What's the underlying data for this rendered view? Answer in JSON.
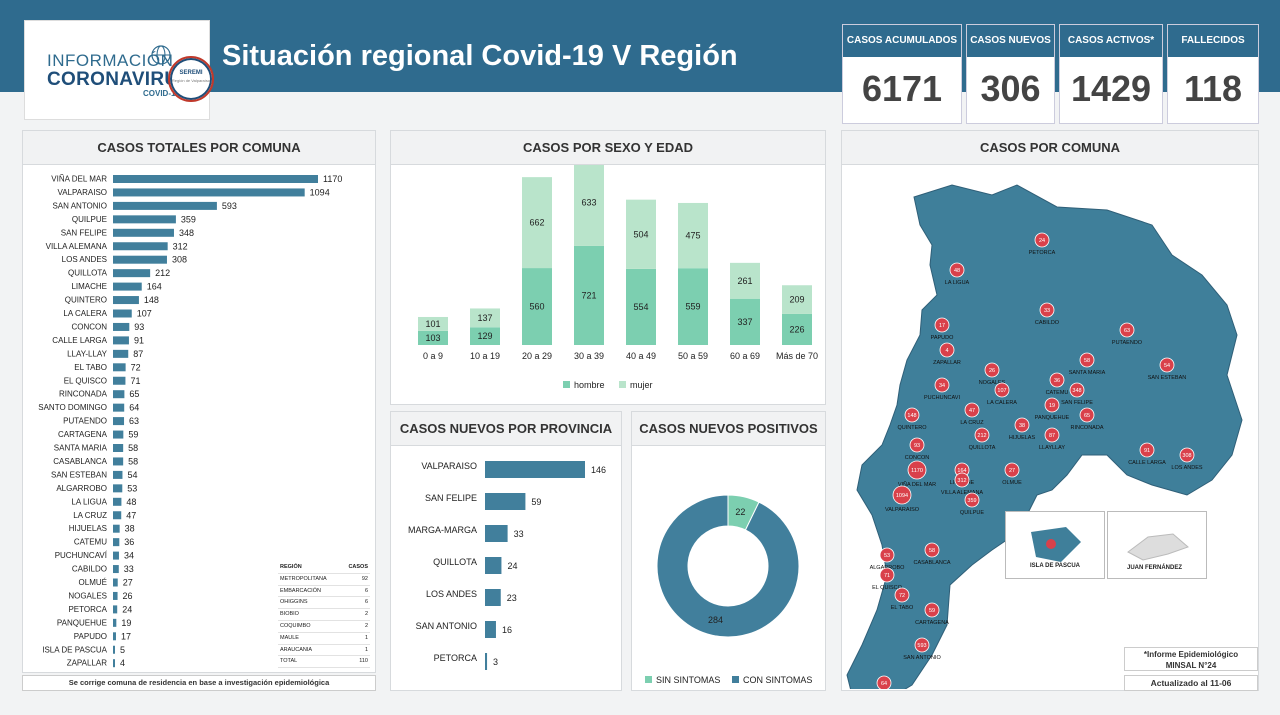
{
  "header": {
    "logo_line1": "INFORMACIÓN",
    "logo_line2": "CORONAVIRUS",
    "logo_line3": "COVID-19",
    "seremi": "SEREMI",
    "seremi_sub": "Región de Valparaíso",
    "title": "Situación regional Covid-19 V Región"
  },
  "kpis": [
    {
      "label": "CASOS ACUMULADOS",
      "value": "6171"
    },
    {
      "label": "CASOS NUEVOS",
      "value": "306"
    },
    {
      "label": "CASOS ACTIVOS*",
      "value": "1429"
    },
    {
      "label": "FALLECIDOS",
      "value": "118"
    }
  ],
  "colors": {
    "accent": "#2f6b8e",
    "bar": "#417f9c",
    "hombre": "#7ccfb0",
    "mujer": "#b9e4cb",
    "marker": "#d9414b"
  },
  "panels": {
    "comuna_title": "CASOS TOTALES POR COMUNA",
    "sexo_title": "CASOS POR SEXO Y EDAD",
    "provincia_title": "CASOS NUEVOS  POR PROVINCIA",
    "positivos_title": "CASOS NUEVOS POSITIVOS",
    "map_title": "CASOS POR COMUNA"
  },
  "footer_note": "Se corrige comuna de residencia en base a investigación epidemiológica",
  "region_table": {
    "headers": [
      "REGIÓN",
      "CASOS"
    ],
    "rows": [
      [
        "METROPOLITANA",
        "92"
      ],
      [
        "EMBARCACIÓN",
        "6"
      ],
      [
        "OHIGGINS",
        "6"
      ],
      [
        "BIOBIO",
        "2"
      ],
      [
        "COQUIMBO",
        "2"
      ],
      [
        "MAULE",
        "1"
      ],
      [
        "ARAUCANIA",
        "1"
      ],
      [
        "TOTAL",
        "110"
      ]
    ]
  },
  "map": {
    "note_line1": "*Informe Epidemiológico",
    "note_line2": "MINSAL N°24",
    "updated": "Actualizado al 11-06",
    "inset1": "ISLA DE PASCUA",
    "inset2": "JUAN FERNÁNDEZ",
    "labels": [
      {
        "name": "PETORCA",
        "value": "24"
      },
      {
        "name": "LA LIGUA",
        "value": "48"
      },
      {
        "name": "CABILDO",
        "value": "33"
      },
      {
        "name": "PUTAENDO",
        "value": "63"
      },
      {
        "name": "PAPUDO",
        "value": "17"
      },
      {
        "name": "ZAPALLAR",
        "value": "4"
      },
      {
        "name": "NOGALES",
        "value": "26"
      },
      {
        "name": "SANTA MARIA",
        "value": "58"
      },
      {
        "name": "SAN ESTEBAN",
        "value": "54"
      },
      {
        "name": "PUCHUNCAVI",
        "value": "34"
      },
      {
        "name": "LA CALERA",
        "value": "107"
      },
      {
        "name": "CATEMU",
        "value": "36"
      },
      {
        "name": "SAN FELIPE",
        "value": "348"
      },
      {
        "name": "PANQUEHUE",
        "value": "19"
      },
      {
        "name": "QUINTERO",
        "value": "148"
      },
      {
        "name": "LA CRUZ",
        "value": "47"
      },
      {
        "name": "HIJUELAS",
        "value": "38"
      },
      {
        "name": "LLAYLLAY",
        "value": "87"
      },
      {
        "name": "RINCONADA",
        "value": "65"
      },
      {
        "name": "QUILLOTA",
        "value": "212"
      },
      {
        "name": "CONCON",
        "value": "93"
      },
      {
        "name": "CALLE LARGA",
        "value": "91"
      },
      {
        "name": "LOS ANDES",
        "value": "308"
      },
      {
        "name": "VIÑA DEL MAR",
        "value": "1170"
      },
      {
        "name": "LIMACHE",
        "value": "164"
      },
      {
        "name": "OLMUE",
        "value": "27"
      },
      {
        "name": "VILLA ALEMANA",
        "value": "312"
      },
      {
        "name": "VALPARAISO",
        "value": "1094"
      },
      {
        "name": "QUILPUE",
        "value": "359"
      },
      {
        "name": "ALGARROBO",
        "value": "53"
      },
      {
        "name": "CASABLANCA",
        "value": "58"
      },
      {
        "name": "EL QUISCO",
        "value": "71"
      },
      {
        "name": "EL TABO",
        "value": "72"
      },
      {
        "name": "CARTAGENA",
        "value": "59"
      },
      {
        "name": "SAN ANTONIO",
        "value": "593"
      },
      {
        "name": "SANTO DOMINGO",
        "value": "64"
      },
      {
        "name": "ISLA DE PASCUA",
        "value": "5"
      }
    ]
  },
  "chart_data": [
    {
      "type": "bar",
      "title": "CASOS TOTALES POR COMUNA",
      "orientation": "horizontal",
      "categories": [
        "VIÑA DEL MAR",
        "VALPARAISO",
        "SAN ANTONIO",
        "QUILPUE",
        "SAN FELIPE",
        "VILLA ALEMANA",
        "LOS ANDES",
        "QUILLOTA",
        "LIMACHE",
        "QUINTERO",
        "LA CALERA",
        "CONCON",
        "CALLE LARGA",
        "LLAY-LLAY",
        "EL TABO",
        "EL QUISCO",
        "RINCONADA",
        "SANTO DOMINGO",
        "PUTAENDO",
        "CARTAGENA",
        "SANTA MARIA",
        "CASABLANCA",
        "SAN ESTEBAN",
        "ALGARROBO",
        "LA LIGUA",
        "LA CRUZ",
        "HIJUELAS",
        "CATEMU",
        "PUCHUNCAVÍ",
        "CABILDO",
        "OLMUÉ",
        "NOGALES",
        "PETORCA",
        "PANQUEHUE",
        "PAPUDO",
        "ISLA DE PASCUA",
        "ZAPALLAR"
      ],
      "values": [
        1170,
        1094,
        593,
        359,
        348,
        312,
        308,
        212,
        164,
        148,
        107,
        93,
        91,
        87,
        72,
        71,
        65,
        64,
        63,
        59,
        58,
        58,
        54,
        53,
        48,
        47,
        38,
        36,
        34,
        33,
        27,
        26,
        24,
        19,
        17,
        5,
        4
      ]
    },
    {
      "type": "bar",
      "stacked": true,
      "title": "CASOS POR SEXO Y EDAD",
      "categories": [
        "0 a 9",
        "10 a 19",
        "20 a 29",
        "30 a 39",
        "40 a 49",
        "50 a 59",
        "60 a 69",
        "Más de 70"
      ],
      "series": [
        {
          "name": "hombre",
          "values": [
            103,
            129,
            560,
            721,
            554,
            559,
            337,
            226
          ]
        },
        {
          "name": "mujer",
          "values": [
            101,
            137,
            662,
            633,
            504,
            475,
            261,
            209
          ]
        }
      ],
      "legend": "bottom"
    },
    {
      "type": "bar",
      "orientation": "horizontal",
      "title": "CASOS NUEVOS  POR PROVINCIA",
      "categories": [
        "VALPARAISO",
        "SAN FELIPE",
        "MARGA-MARGA",
        "QUILLOTA",
        "LOS ANDES",
        "SAN ANTONIO",
        "PETORCA"
      ],
      "values": [
        146,
        59,
        33,
        24,
        23,
        16,
        3
      ]
    },
    {
      "type": "pie",
      "donut": true,
      "title": "CASOS NUEVOS POSITIVOS",
      "categories": [
        "SIN SINTOMAS",
        "CON SINTOMAS"
      ],
      "values": [
        22,
        284
      ],
      "legend": "bottom"
    }
  ]
}
